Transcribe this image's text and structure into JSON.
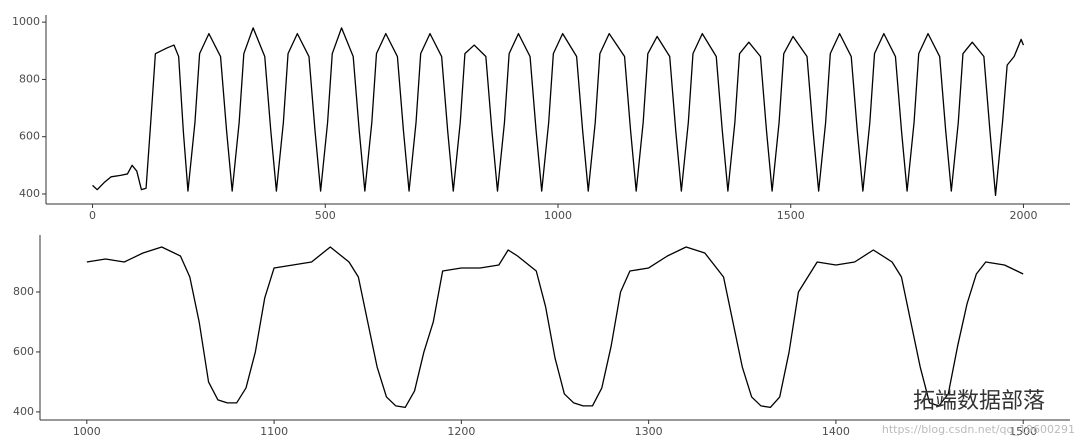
{
  "chart_data": [
    {
      "type": "line",
      "x": [
        0,
        10,
        25,
        40,
        60,
        75,
        85,
        95,
        105,
        115,
        125,
        135,
        160,
        175,
        185,
        195,
        205,
        220,
        230,
        250,
        275,
        288,
        300,
        315,
        325,
        345,
        370,
        383,
        395,
        410,
        420,
        440,
        465,
        478,
        490,
        505,
        515,
        535,
        560,
        573,
        585,
        600,
        610,
        630,
        655,
        668,
        680,
        695,
        705,
        725,
        750,
        763,
        775,
        790,
        800,
        820,
        845,
        858,
        870,
        885,
        895,
        915,
        940,
        953,
        965,
        980,
        990,
        1010,
        1040,
        1053,
        1065,
        1080,
        1090,
        1110,
        1143,
        1156,
        1168,
        1183,
        1193,
        1213,
        1240,
        1253,
        1265,
        1280,
        1290,
        1310,
        1340,
        1353,
        1365,
        1380,
        1390,
        1410,
        1435,
        1448,
        1460,
        1475,
        1485,
        1505,
        1535,
        1548,
        1560,
        1575,
        1585,
        1605,
        1630,
        1643,
        1655,
        1670,
        1680,
        1700,
        1725,
        1738,
        1750,
        1765,
        1775,
        1795,
        1820,
        1833,
        1845,
        1860,
        1870,
        1890,
        1915,
        1928,
        1940,
        1955,
        1965,
        1980,
        1995,
        2000
      ],
      "series": [
        {
          "color": "#000000",
          "values": [
            430,
            415,
            440,
            460,
            465,
            470,
            500,
            480,
            415,
            420,
            650,
            890,
            910,
            920,
            880,
            620,
            410,
            650,
            890,
            960,
            880,
            620,
            410,
            650,
            890,
            980,
            880,
            620,
            410,
            650,
            890,
            960,
            880,
            620,
            410,
            650,
            890,
            980,
            880,
            620,
            410,
            650,
            890,
            960,
            880,
            620,
            410,
            650,
            890,
            960,
            880,
            620,
            410,
            650,
            890,
            920,
            880,
            620,
            410,
            650,
            890,
            960,
            880,
            620,
            410,
            650,
            890,
            960,
            880,
            620,
            410,
            650,
            890,
            960,
            880,
            620,
            410,
            650,
            890,
            950,
            880,
            620,
            410,
            650,
            890,
            960,
            880,
            620,
            410,
            650,
            890,
            930,
            880,
            620,
            410,
            650,
            890,
            950,
            880,
            620,
            410,
            650,
            890,
            960,
            880,
            620,
            410,
            650,
            890,
            960,
            880,
            620,
            410,
            650,
            890,
            960,
            880,
            620,
            410,
            650,
            890,
            930,
            880,
            620,
            395,
            650,
            850,
            880,
            940,
            920
          ]
        }
      ],
      "xlim": [
        -100,
        2100
      ],
      "xticks": [
        0,
        500,
        1000,
        1500,
        2000
      ],
      "ylim": [
        365,
        1025
      ],
      "yticks": [
        400,
        600,
        800,
        1000
      ]
    },
    {
      "type": "line",
      "x": [
        1000,
        1010,
        1020,
        1030,
        1040,
        1050,
        1055,
        1060,
        1065,
        1070,
        1075,
        1080,
        1085,
        1090,
        1095,
        1100,
        1110,
        1120,
        1130,
        1140,
        1145,
        1150,
        1155,
        1160,
        1165,
        1170,
        1175,
        1180,
        1185,
        1190,
        1200,
        1210,
        1220,
        1225,
        1230,
        1240,
        1245,
        1250,
        1255,
        1260,
        1265,
        1270,
        1275,
        1280,
        1285,
        1290,
        1300,
        1310,
        1320,
        1330,
        1340,
        1345,
        1350,
        1355,
        1360,
        1365,
        1370,
        1375,
        1380,
        1390,
        1400,
        1410,
        1420,
        1430,
        1435,
        1440,
        1445,
        1450,
        1455,
        1460,
        1465,
        1470,
        1475,
        1480,
        1490,
        1500
      ],
      "series": [
        {
          "color": "#000000",
          "values": [
            900,
            910,
            900,
            930,
            950,
            920,
            850,
            700,
            500,
            440,
            430,
            430,
            480,
            600,
            780,
            880,
            890,
            900,
            950,
            900,
            850,
            700,
            550,
            450,
            420,
            415,
            470,
            600,
            700,
            870,
            880,
            880,
            890,
            940,
            920,
            870,
            750,
            580,
            460,
            430,
            420,
            420,
            480,
            620,
            800,
            870,
            880,
            920,
            950,
            930,
            850,
            700,
            550,
            450,
            420,
            415,
            450,
            600,
            800,
            900,
            890,
            900,
            940,
            900,
            850,
            700,
            550,
            430,
            420,
            460,
            620,
            760,
            860,
            900,
            890,
            860
          ]
        }
      ],
      "xlim": [
        975,
        1525
      ],
      "xticks": [
        1000,
        1100,
        1200,
        1300,
        1400,
        1500
      ],
      "ylim": [
        373,
        990
      ],
      "yticks": [
        400,
        600,
        800
      ]
    }
  ],
  "watermark": "拓端数据部落",
  "url": "https://blog.csdn.net/qq_19600291"
}
